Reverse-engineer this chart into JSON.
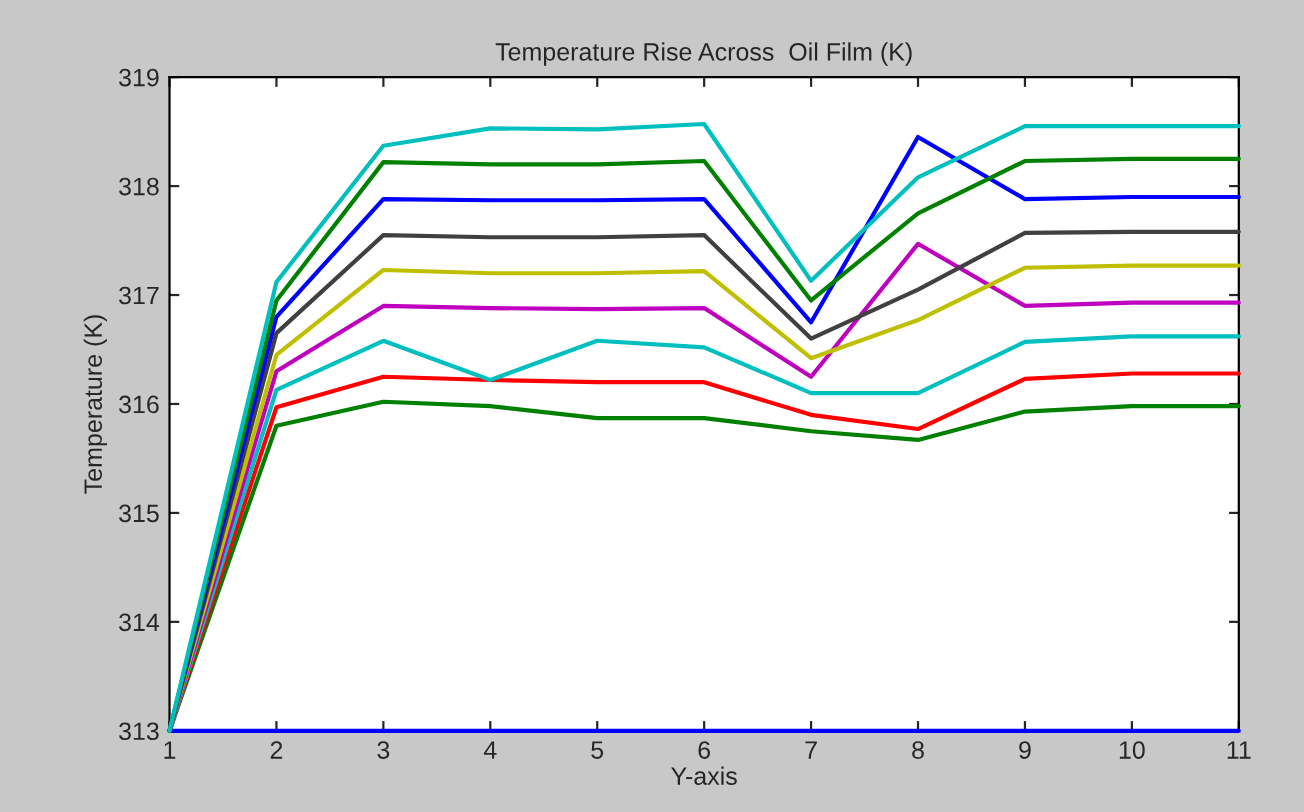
{
  "chart_data": {
    "type": "line",
    "title": "Temperature Rise Across  Oil Film (K)",
    "xlabel": "Y-axis",
    "ylabel": "Temperature (K)",
    "x": [
      1,
      2,
      3,
      4,
      5,
      6,
      7,
      8,
      9,
      10,
      11
    ],
    "series": [
      {
        "color": "#0000ff",
        "values": [
          313,
          313,
          313,
          313,
          313,
          313,
          313,
          313,
          313,
          313,
          313
        ]
      },
      {
        "color": "#008000",
        "values": [
          313,
          315.8,
          316.02,
          315.98,
          315.87,
          315.87,
          315.75,
          315.67,
          315.93,
          315.98,
          315.98
        ]
      },
      {
        "color": "#ff0000",
        "values": [
          313,
          315.97,
          316.25,
          316.22,
          316.2,
          316.2,
          315.9,
          315.77,
          316.23,
          316.28,
          316.28
        ]
      },
      {
        "color": "#00bfbf",
        "values": [
          313,
          316.13,
          316.58,
          316.22,
          316.58,
          316.52,
          316.1,
          316.1,
          316.57,
          316.62,
          316.62
        ]
      },
      {
        "color": "#bf00bf",
        "values": [
          313,
          316.3,
          316.9,
          316.88,
          316.87,
          316.88,
          316.25,
          317.47,
          316.9,
          316.93,
          316.93
        ]
      },
      {
        "color": "#bfbf00",
        "values": [
          313,
          316.45,
          317.23,
          317.2,
          317.2,
          317.22,
          316.42,
          316.77,
          317.25,
          317.27,
          317.27
        ]
      },
      {
        "color": "#404040",
        "values": [
          313,
          316.65,
          317.55,
          317.53,
          317.53,
          317.55,
          316.6,
          317.05,
          317.57,
          317.58,
          317.58
        ]
      },
      {
        "color": "#0000ff",
        "values": [
          313,
          316.8,
          317.88,
          317.87,
          317.87,
          317.88,
          316.75,
          318.45,
          317.88,
          317.9,
          317.9
        ]
      },
      {
        "color": "#008000",
        "values": [
          313,
          316.95,
          318.22,
          318.2,
          318.2,
          318.23,
          316.95,
          317.75,
          318.23,
          318.25,
          318.25
        ]
      },
      {
        "color": "#00bfbf",
        "values": [
          313,
          317.12,
          318.37,
          318.53,
          318.52,
          318.57,
          317.13,
          318.08,
          318.55,
          318.55,
          318.55
        ]
      }
    ],
    "xlim": [
      1,
      11
    ],
    "xticks": [
      1,
      2,
      3,
      4,
      5,
      6,
      7,
      8,
      9,
      10,
      11
    ],
    "ylim": [
      313,
      319
    ],
    "yticks": [
      313,
      314,
      315,
      316,
      317,
      318,
      319
    ],
    "grid": false,
    "marker": "none",
    "line_style": "solid"
  }
}
